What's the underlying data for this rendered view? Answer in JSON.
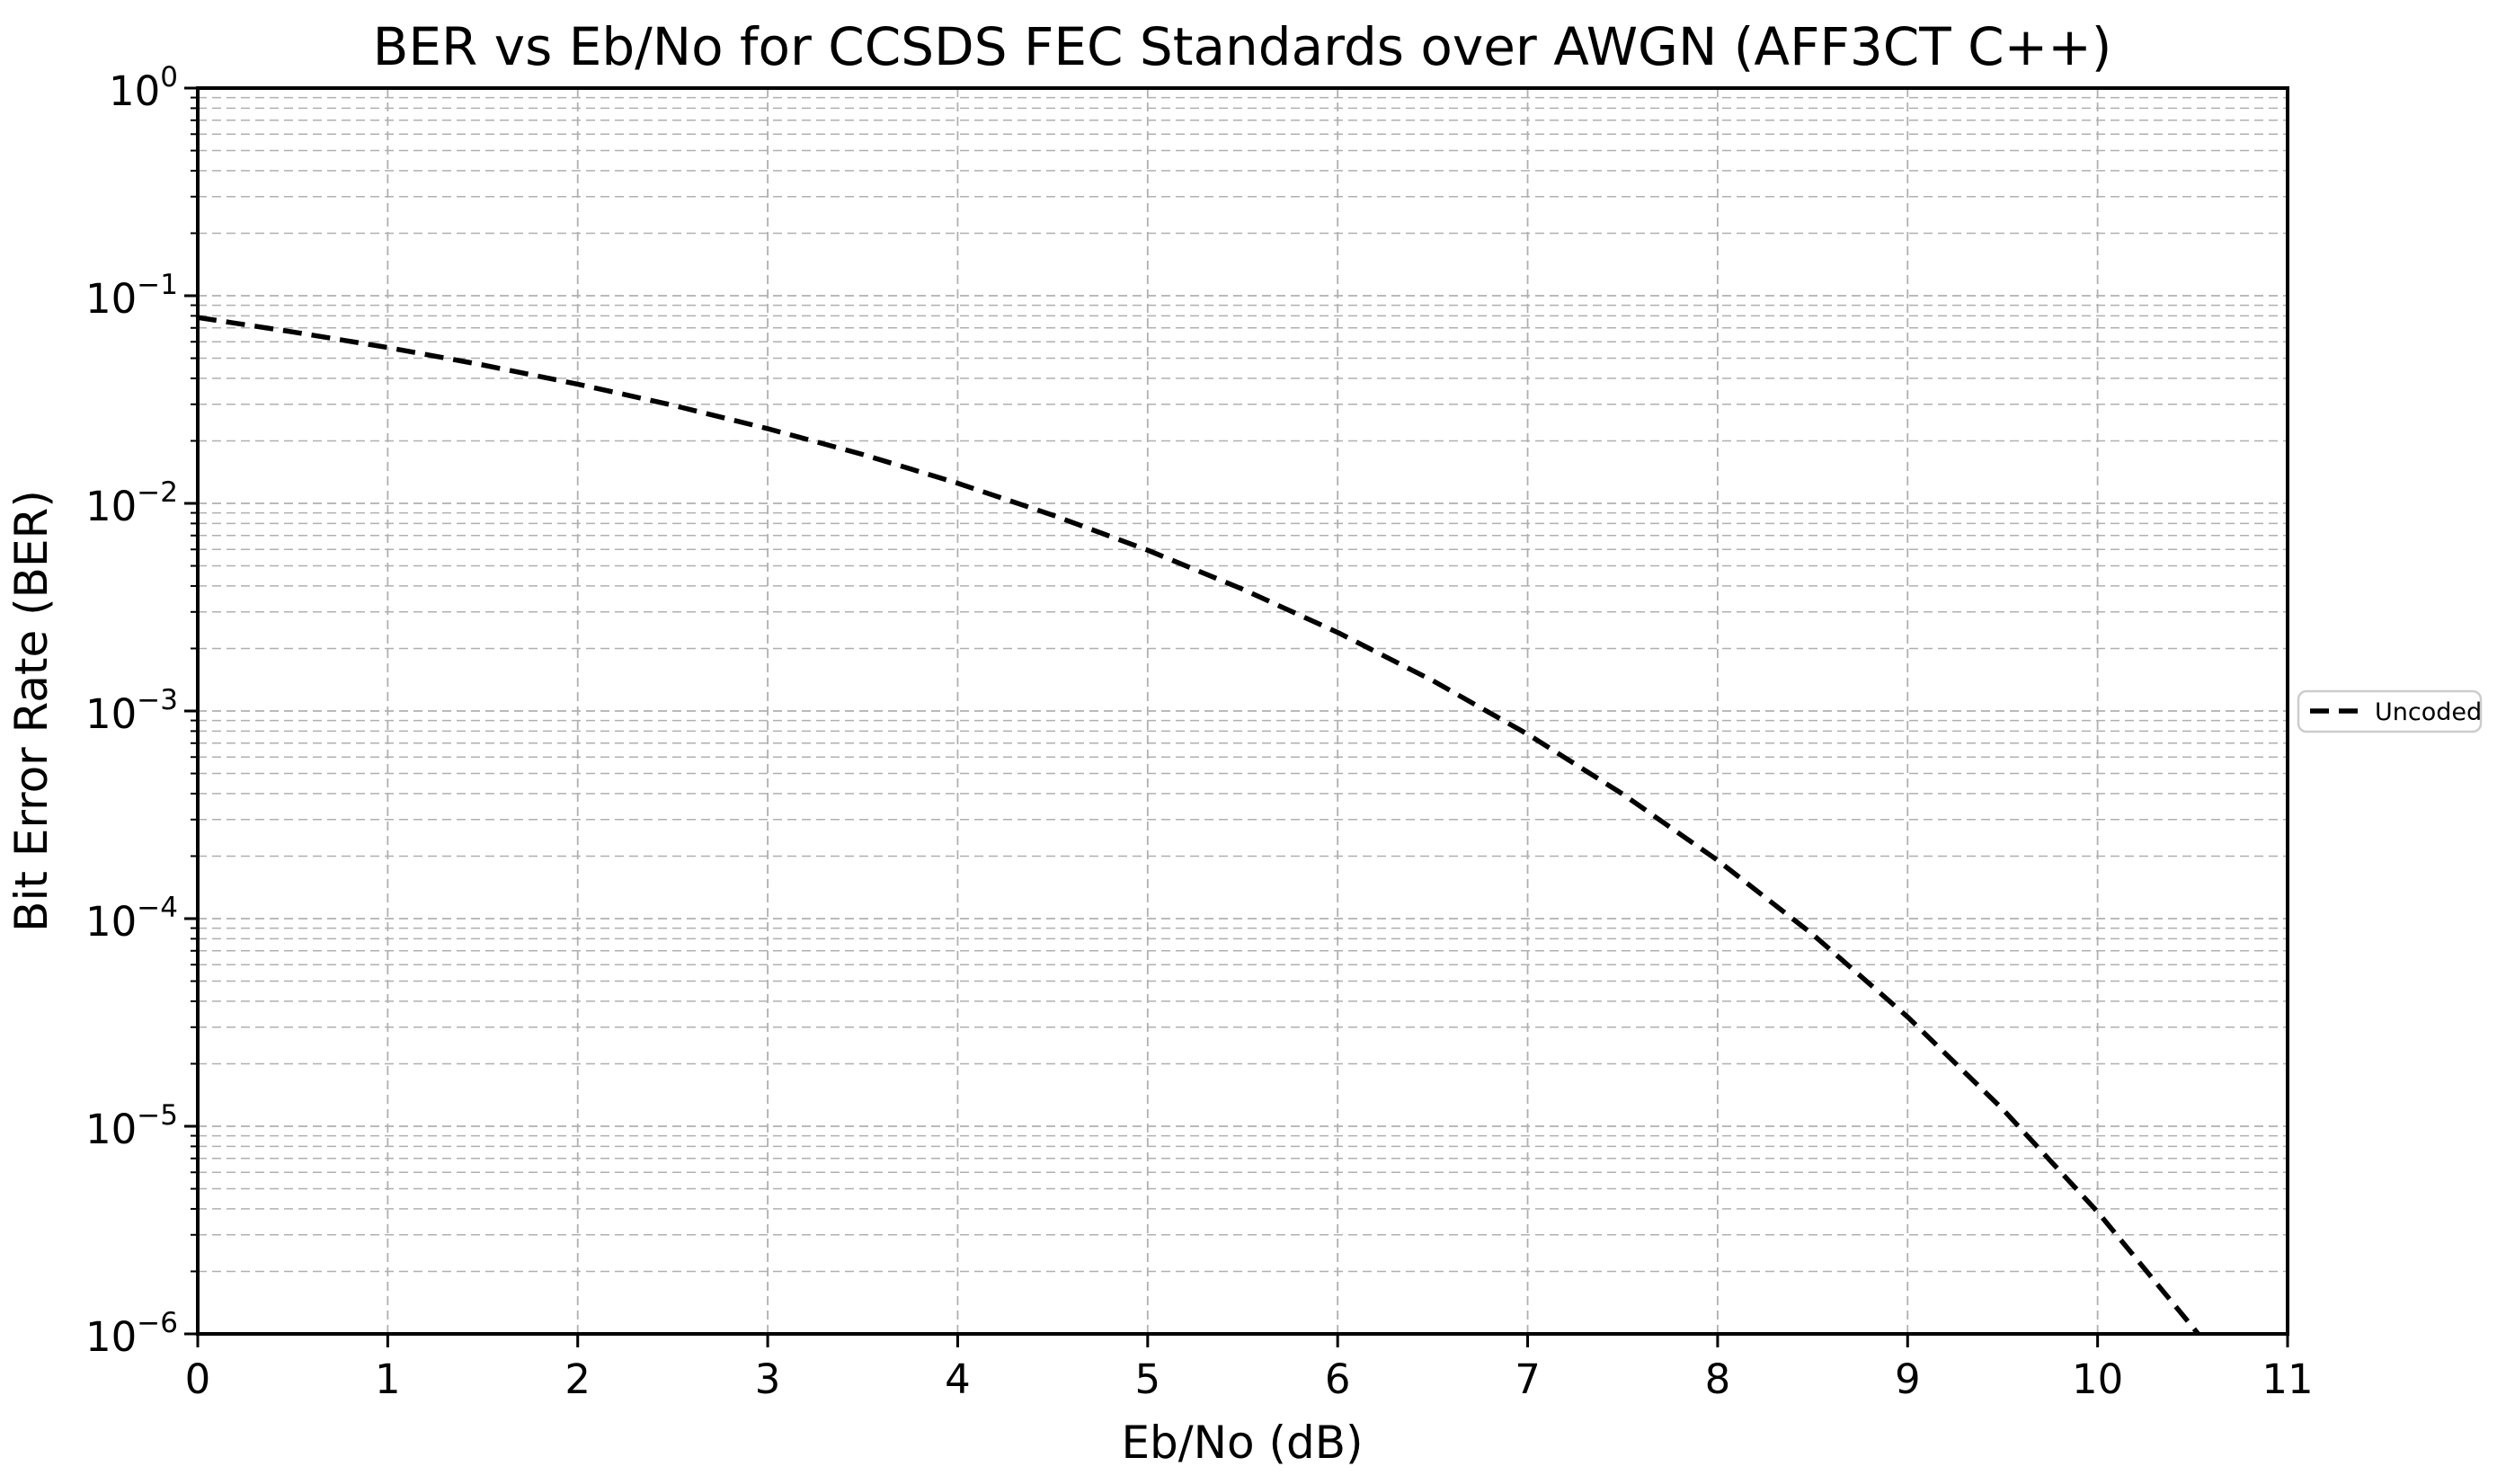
{
  "chart_data": {
    "type": "line",
    "title": "BER vs Eb/No for CCSDS FEC Standards over AWGN (AFF3CT C++)",
    "xlabel": "Eb/No (dB)",
    "ylabel": "Bit Error Rate (BER)",
    "x_scale": "linear",
    "y_scale": "log",
    "xlim": [
      0,
      11
    ],
    "ylim": [
      1e-06,
      1
    ],
    "x_ticks": [
      0,
      1,
      2,
      3,
      4,
      5,
      6,
      7,
      8,
      9,
      10,
      11
    ],
    "y_tick_exponents": [
      0,
      -1,
      -2,
      -3,
      -4,
      -5,
      -6
    ],
    "grid": {
      "which": "both",
      "style": "dashed",
      "vertical_minor": false
    },
    "legend_position": "center-right-outside",
    "series": [
      {
        "name": "Uncoded",
        "color": "#000000",
        "line_style": "dashed",
        "points": [
          [
            0.0,
            0.0786
          ],
          [
            0.5,
            0.0669
          ],
          [
            1.0,
            0.0563
          ],
          [
            1.5,
            0.0464
          ],
          [
            2.0,
            0.0375
          ],
          [
            2.5,
            0.0297
          ],
          [
            3.0,
            0.0229
          ],
          [
            3.5,
            0.0172
          ],
          [
            4.0,
            0.0125
          ],
          [
            4.5,
            0.00878
          ],
          [
            5.0,
            0.00595
          ],
          [
            5.5,
            0.00386
          ],
          [
            6.0,
            0.00239
          ],
          [
            6.5,
            0.0014
          ],
          [
            7.0,
            0.000773
          ],
          [
            7.5,
            0.000398
          ],
          [
            8.0,
            0.000191
          ],
          [
            8.5,
            8.4e-05
          ],
          [
            9.0,
            3.36e-05
          ],
          [
            9.5,
            1.21e-05
          ],
          [
            10.0,
            3.87e-06
          ],
          [
            10.5,
            1.08e-06
          ],
          [
            10.75,
            5.6e-07
          ]
        ]
      }
    ]
  },
  "legend": {
    "items": [
      {
        "label": "Uncoded",
        "line_style": "dashed"
      }
    ]
  },
  "colors": {
    "background": "#ffffff",
    "line": "#000000",
    "grid": "#b0b0b0",
    "axis": "#000000",
    "legend_border": "#cccccc"
  }
}
